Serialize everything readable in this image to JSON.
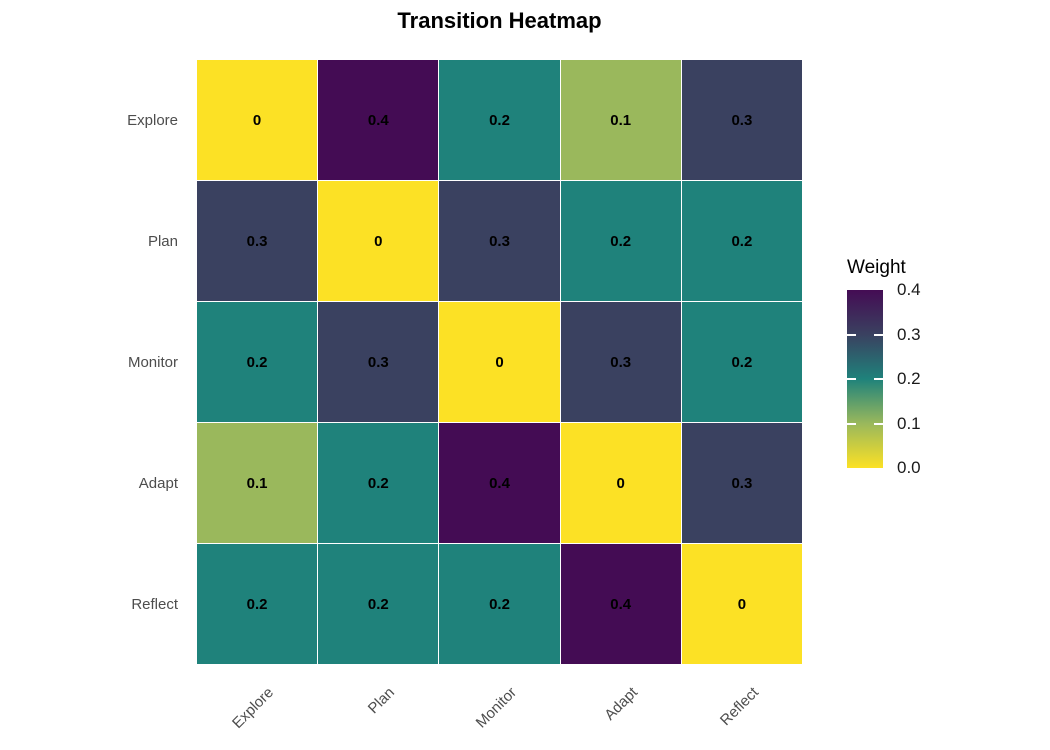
{
  "title": "Transition Heatmap",
  "legend": {
    "title": "Weight",
    "ticks": [
      "0.4",
      "0.3",
      "0.2",
      "0.1",
      "0.0"
    ]
  },
  "chart_data": {
    "type": "heatmap",
    "title": "Transition Heatmap",
    "rows": [
      "Explore",
      "Plan",
      "Monitor",
      "Adapt",
      "Reflect"
    ],
    "columns": [
      "Explore",
      "Plan",
      "Monitor",
      "Adapt",
      "Reflect"
    ],
    "values": [
      [
        0,
        0.4,
        0.2,
        0.1,
        0.3
      ],
      [
        0.3,
        0,
        0.3,
        0.2,
        0.2
      ],
      [
        0.2,
        0.3,
        0,
        0.3,
        0.2
      ],
      [
        0.1,
        0.2,
        0.4,
        0,
        0.3
      ],
      [
        0.2,
        0.2,
        0.2,
        0.4,
        0
      ]
    ],
    "legend_title": "Weight",
    "scale": {
      "min": 0,
      "max": 0.4,
      "direction": "high-dark-low-yellow",
      "stops": [
        {
          "value": 0.0,
          "color": "#FCE125"
        },
        {
          "value": 0.1,
          "color": "#9AB85C"
        },
        {
          "value": 0.2,
          "color": "#1F827B"
        },
        {
          "value": 0.3,
          "color": "#3A4160"
        },
        {
          "value": 0.4,
          "color": "#440C54"
        }
      ]
    },
    "layout": {
      "legend_position": "right",
      "x_tick_rotation_deg": 45,
      "grid_line_color": "#FFFFFF",
      "cell_label_style": "bold"
    }
  }
}
